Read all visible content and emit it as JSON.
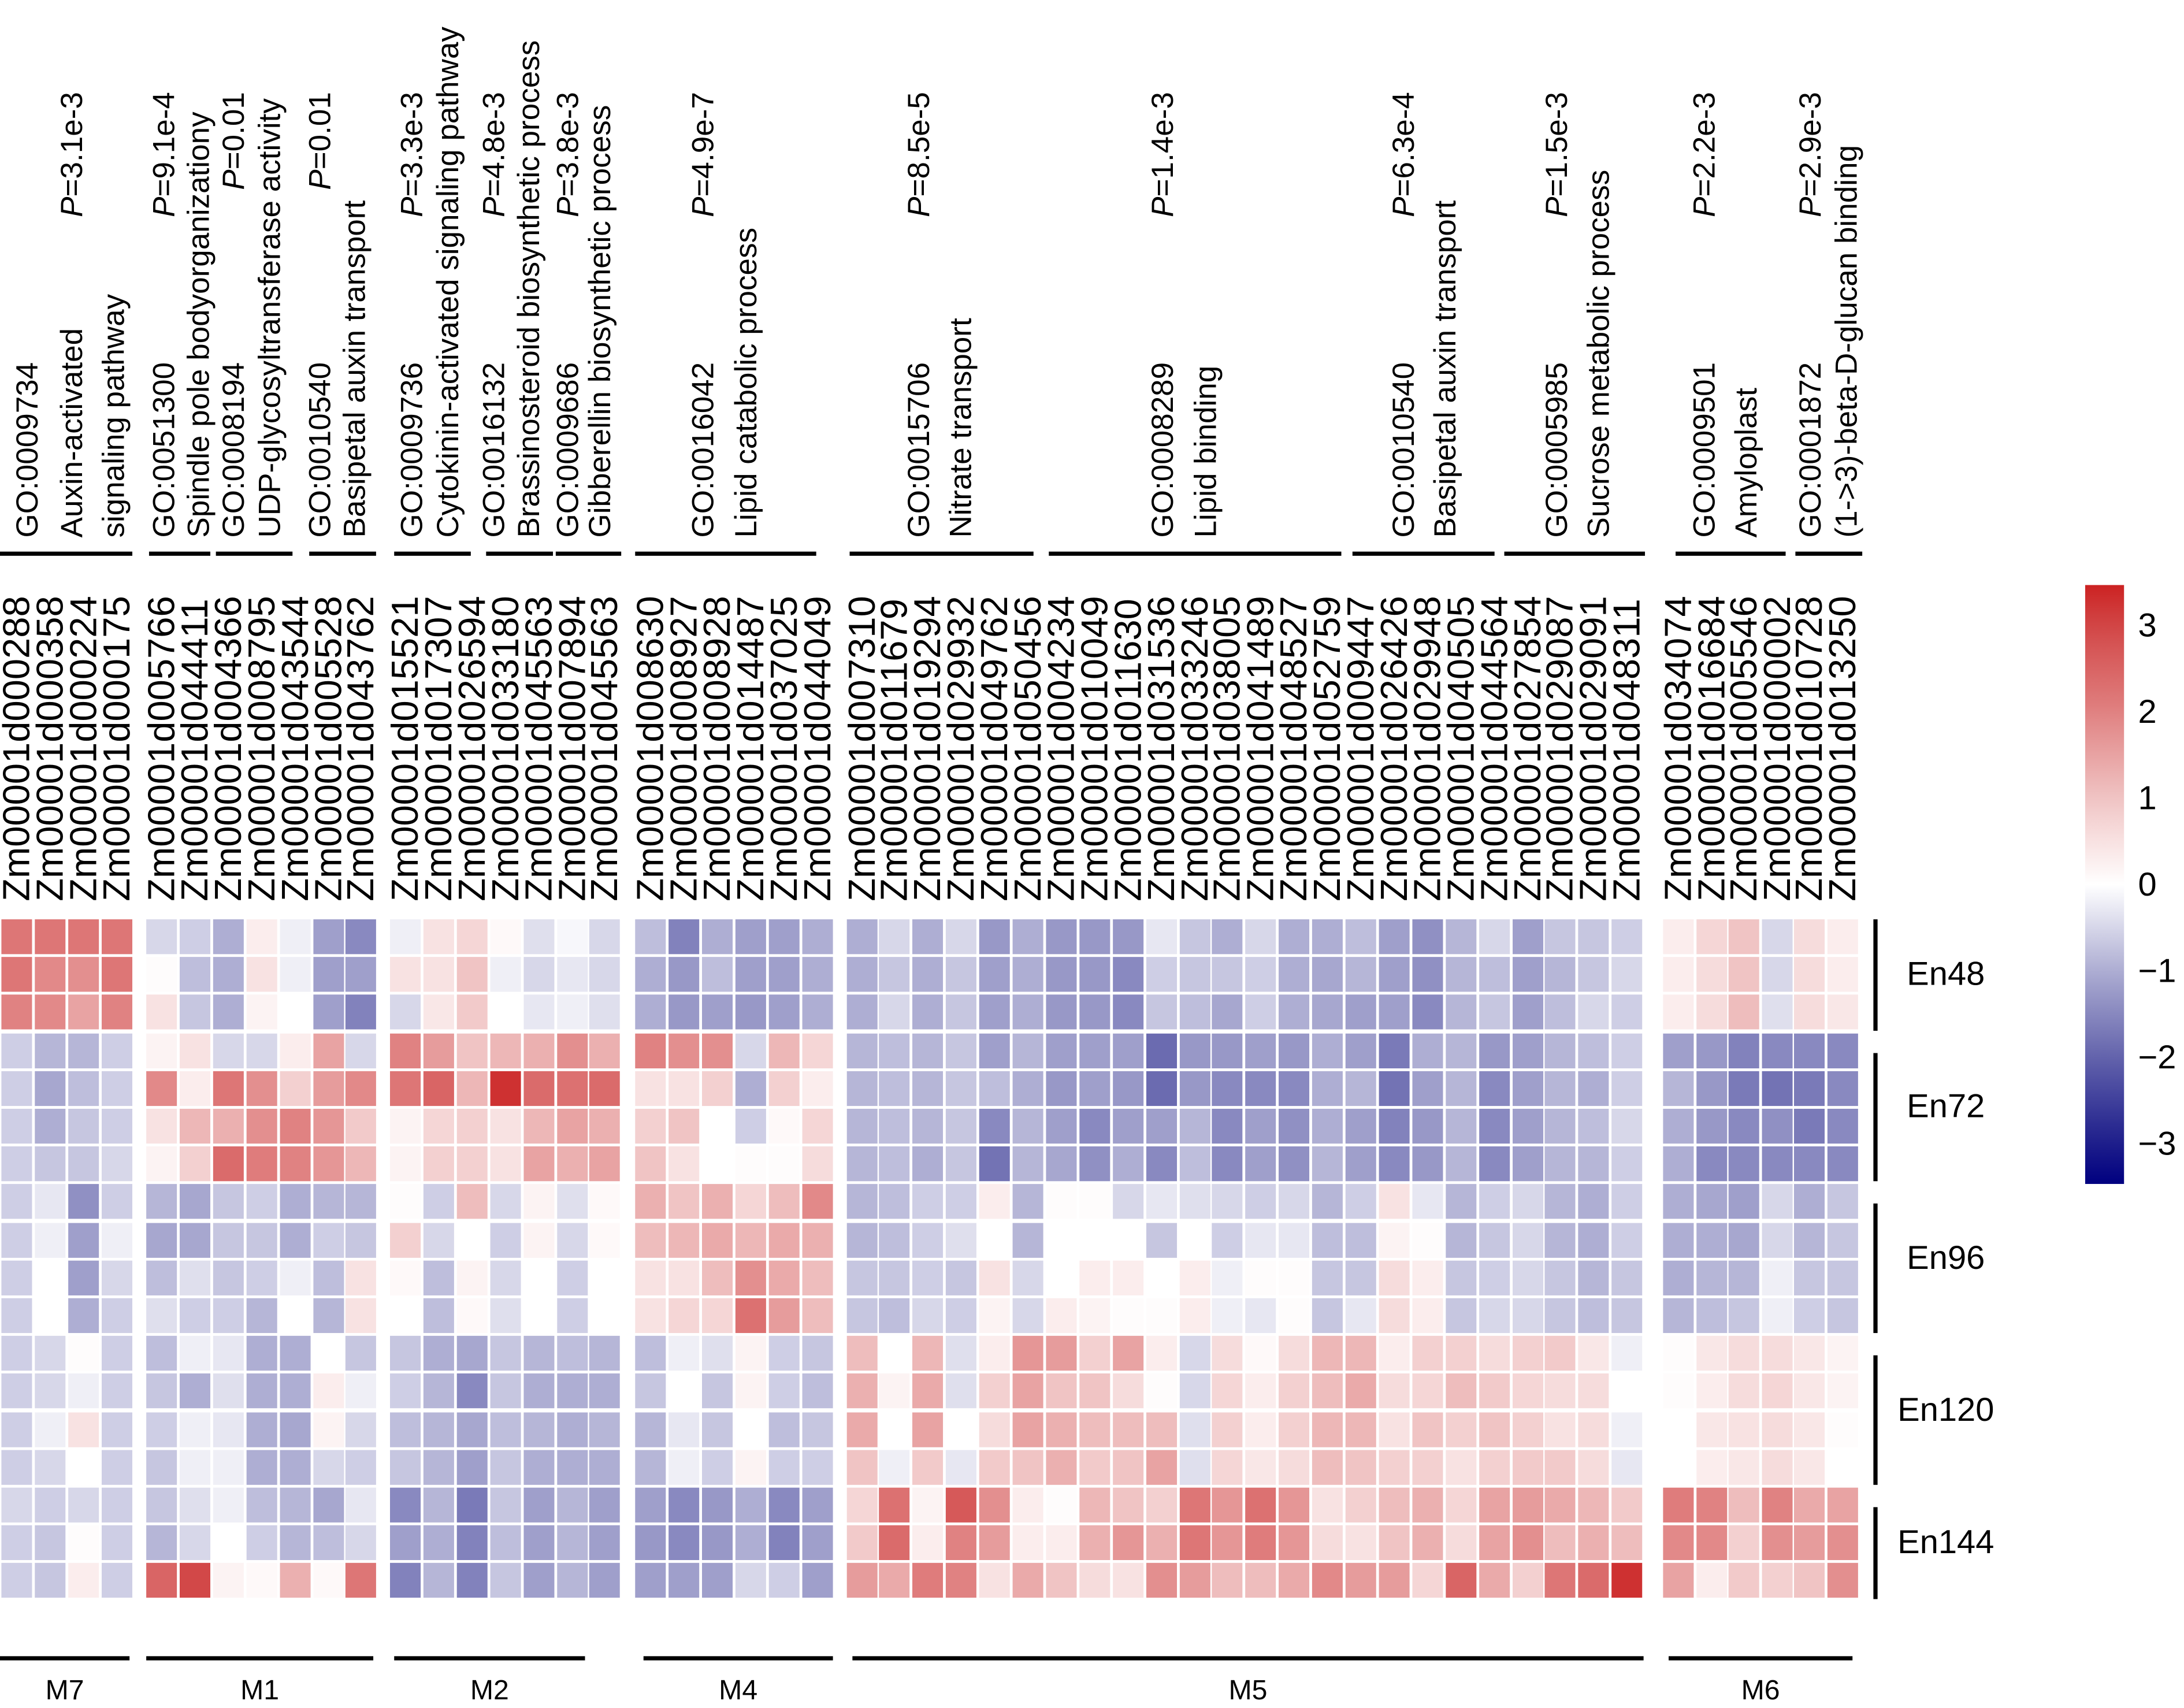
{
  "chart_data": {
    "type": "heatmap",
    "title": "",
    "colorbar": {
      "min": -3.5,
      "max": 3.5,
      "ticks": [
        "3",
        "2",
        "1",
        "0",
        "−1",
        "−2",
        "−3"
      ],
      "low_color": "#000080",
      "mid_color": "#ffffff",
      "high_color": "#cc2222"
    },
    "p_prefix": "P",
    "p_eq": "=",
    "go_annotations": [
      {
        "lines": [
          "GO:0009734",
          "Auxin-activated",
          "signaling pathway"
        ],
        "p": "3.1e-3"
      },
      {
        "lines": [
          "GO:0051300",
          "Spindle pole bodyorganizationy"
        ],
        "p": "9.1e-4"
      },
      {
        "lines": [
          "GO:0008194",
          "UDP-glycosyltransferase activity"
        ],
        "p": "0.01"
      },
      {
        "lines": [
          "GO:0010540",
          "Basipetal auxin transport"
        ],
        "p": "0.01"
      },
      {
        "lines": [
          "GO:0009736",
          "Cytokinin-activated signaling pathway"
        ],
        "p": "3.3e-3"
      },
      {
        "lines": [
          "GO:0016132",
          "Brassinosteroid biosynthetic process"
        ],
        "p": "4.8e-3"
      },
      {
        "lines": [
          "GO:0009686",
          "Gibberellin biosynthetic process"
        ],
        "p": "3.8e-3"
      },
      {
        "lines": [
          "GO:0016042",
          "Lipid catabolic process"
        ],
        "p": "4.9e-7"
      },
      {
        "lines": [
          "GO:0015706",
          "Nitrate transport"
        ],
        "p": "8.5e-5"
      },
      {
        "lines": [
          "GO:0008289",
          "Lipid binding"
        ],
        "p": "1.4e-3"
      },
      {
        "lines": [
          "GO:0010540",
          "Basipetal auxin transport"
        ],
        "p": "6.3e-4"
      },
      {
        "lines": [
          "GO:0005985",
          "Sucrose metabolic process"
        ],
        "p": "1.5e-3"
      },
      {
        "lines": [
          "GO:0009501",
          "Amyloplast"
        ],
        "p": "2.2e-3"
      },
      {
        "lines": [
          "GO:0001872",
          "(1->3)-beta-D-glucan binding"
        ],
        "p": "2.9e-3"
      }
    ],
    "modules": [
      {
        "name": "M7",
        "genes": [
          "Zm00001d000288",
          "Zm00001d000358",
          "Zm00001d000224",
          "Zm00001d000175"
        ]
      },
      {
        "name": "M1",
        "genes": [
          "Zm00001d005766",
          "Zm00001d044411",
          "Zm00001d004366",
          "Zm00001d008795",
          "Zm00001d043544",
          "Zm00001d005528",
          "Zm00001d043762"
        ]
      },
      {
        "name": "M2",
        "genes": [
          "Zm00001d015521",
          "Zm00001d017307",
          "Zm00001d026594",
          "Zm00001d033180",
          "Zm00001d045563",
          "Zm00001d007894",
          "Zm00001d045563"
        ]
      },
      {
        "name": "M4",
        "genes": [
          "Zm00001d008630",
          "Zm00001d008927",
          "Zm00001d008928",
          "Zm00001d014487",
          "Zm00001d037025",
          "Zm00001d044049"
        ]
      },
      {
        "name": "M5",
        "genes": [
          "Zm00001d007310",
          "Zm00001d011679",
          "Zm00001d019294",
          "Zm00001d029932",
          "Zm00001d049762",
          "Zm00001d050456",
          "Zm00001d004234",
          "Zm00001d010049",
          "Zm00001d011630",
          "Zm00001d031536",
          "Zm00001d033246",
          "Zm00001d038005",
          "Zm00001d041489",
          "Zm00001d048527",
          "Zm00001d052759",
          "Zm00001d009447",
          "Zm00001d026426",
          "Zm00001d029948",
          "Zm00001d040505",
          "Zm00001d044564",
          "Zm00001d027854",
          "Zm00001d029087",
          "Zm00001d029091",
          "Zm00001d048311"
        ]
      },
      {
        "name": "M6",
        "genes": [
          "Zm00001d034074",
          "Zm00001d016684",
          "Zm00001d005546",
          "Zm00001d000002",
          "Zm00001d010728",
          "Zm00001d013250"
        ]
      }
    ],
    "row_groups": [
      {
        "name": "En48",
        "rows": 3
      },
      {
        "name": "En72",
        "rows": 4
      },
      {
        "name": "En96",
        "rows": 4
      },
      {
        "name": "En120",
        "rows": 4
      },
      {
        "name": "En144",
        "rows": 3
      }
    ],
    "values": [
      [
        2.2,
        2.2,
        2.2,
        2.2,
        -0.5,
        -0.6,
        -1.0,
        0.3,
        -0.2,
        -1.2,
        -1.5,
        -0.2,
        0.5,
        0.7,
        0.1,
        -0.4,
        -0.1,
        -0.5,
        -0.8,
        -1.6,
        -1.0,
        -1.2,
        -1.2,
        -1.0,
        -1.0,
        -0.5,
        -1.0,
        -0.5,
        -1.3,
        -1.0,
        -1.3,
        -1.3,
        -1.3,
        -0.3,
        -0.7,
        -1.0,
        -0.5,
        -1.0,
        -1.0,
        -0.8,
        -1.2,
        -1.4,
        -0.9,
        -0.5,
        -1.2,
        -0.7,
        -0.7,
        -0.6,
        0.3,
        0.7,
        1.0,
        -0.5,
        0.6,
        0.3
      ],
      [
        2.2,
        1.9,
        1.8,
        2.2,
        0.05,
        -0.8,
        -1.0,
        0.5,
        -0.2,
        -1.2,
        -1.2,
        0.5,
        0.5,
        1.0,
        -0.2,
        -0.5,
        -0.3,
        -0.5,
        -1.0,
        -1.3,
        -0.8,
        -1.2,
        -1.2,
        -1.0,
        -1.0,
        -0.7,
        -1.0,
        -0.7,
        -1.2,
        -1.0,
        -1.3,
        -1.3,
        -1.5,
        -0.6,
        -0.7,
        -0.7,
        -0.6,
        -1.0,
        -1.1,
        -0.9,
        -1.2,
        -1.4,
        -0.9,
        -0.8,
        -1.2,
        -0.9,
        -0.7,
        -0.5,
        0.3,
        0.6,
        1.0,
        -0.5,
        0.6,
        0.3
      ],
      [
        2.0,
        1.9,
        1.5,
        2.0,
        0.5,
        -0.7,
        -1.0,
        0.2,
        0.0,
        -1.2,
        -1.6,
        -0.5,
        0.4,
        0.9,
        0.0,
        -0.3,
        -0.2,
        -0.4,
        -1.0,
        -1.3,
        -1.2,
        -1.3,
        -1.2,
        -1.0,
        -1.0,
        -0.5,
        -1.0,
        -0.7,
        -1.2,
        -1.0,
        -1.3,
        -1.3,
        -1.5,
        -0.7,
        -0.8,
        -1.1,
        -0.6,
        -1.0,
        -1.1,
        -1.2,
        -1.2,
        -1.5,
        -0.9,
        -0.7,
        -1.2,
        -0.8,
        -0.5,
        -0.6,
        0.3,
        0.6,
        1.1,
        -0.4,
        0.6,
        0.4
      ],
      [
        -0.6,
        -0.9,
        -0.9,
        -0.6,
        0.2,
        0.5,
        -0.5,
        -0.5,
        0.3,
        1.5,
        -0.5,
        2.0,
        1.6,
        1.0,
        1.2,
        1.3,
        1.8,
        1.3,
        2.0,
        1.8,
        1.8,
        -0.5,
        1.2,
        0.7,
        -0.9,
        -0.8,
        -0.9,
        -0.7,
        -1.2,
        -0.9,
        -1.2,
        -1.2,
        -1.2,
        -1.9,
        -1.3,
        -1.3,
        -1.2,
        -1.3,
        -1.0,
        -1.2,
        -1.7,
        -1.0,
        -0.9,
        -1.3,
        -1.2,
        -0.9,
        -0.8,
        -0.6,
        -1.2,
        -1.3,
        -1.6,
        -1.5,
        -1.5,
        -1.5
      ],
      [
        -0.6,
        -1.1,
        -0.8,
        -0.6,
        1.9,
        0.3,
        2.2,
        1.8,
        0.8,
        1.6,
        1.9,
        2.2,
        2.5,
        1.2,
        3.3,
        2.4,
        2.3,
        2.4,
        0.5,
        0.5,
        0.8,
        -1.0,
        0.8,
        0.3,
        -0.9,
        -0.8,
        -0.9,
        -0.7,
        -0.8,
        -1.0,
        -1.3,
        -1.2,
        -1.3,
        -1.9,
        -1.3,
        -1.5,
        -1.5,
        -1.5,
        -1.0,
        -0.9,
        -1.8,
        -1.2,
        -0.9,
        -1.5,
        -1.2,
        -0.9,
        -1.0,
        -0.6,
        -0.9,
        -1.3,
        -1.7,
        -1.8,
        -1.7,
        -1.5
      ],
      [
        -0.6,
        -1.0,
        -0.7,
        -0.6,
        0.5,
        1.2,
        1.3,
        1.8,
        2.0,
        1.7,
        0.9,
        0.2,
        0.7,
        0.8,
        0.5,
        1.2,
        1.5,
        1.3,
        0.8,
        1.0,
        0.0,
        -0.6,
        0.1,
        0.7,
        -0.9,
        -0.8,
        -0.9,
        -0.7,
        -1.5,
        -0.9,
        -1.2,
        -1.5,
        -1.2,
        -1.2,
        -0.9,
        -1.5,
        -1.2,
        -1.4,
        -1.0,
        -1.2,
        -1.6,
        -1.3,
        -0.9,
        -1.5,
        -1.2,
        -0.9,
        -0.8,
        -0.5,
        -1.0,
        -1.3,
        -1.5,
        -1.4,
        -1.7,
        -1.5
      ],
      [
        -0.6,
        -0.7,
        -0.7,
        -0.5,
        0.2,
        0.8,
        2.4,
        2.1,
        2.0,
        1.7,
        1.2,
        0.2,
        0.8,
        0.8,
        0.5,
        1.5,
        1.3,
        1.5,
        1.0,
        0.5,
        0.0,
        0.05,
        0.05,
        0.6,
        -0.9,
        -0.8,
        -1.0,
        -0.7,
        -1.8,
        -0.9,
        -1.1,
        -1.4,
        -1.0,
        -1.5,
        -0.8,
        -1.5,
        -1.2,
        -1.4,
        -0.9,
        -1.2,
        -1.5,
        -1.3,
        -0.9,
        -1.5,
        -1.2,
        -0.9,
        -0.9,
        -0.6,
        -1.0,
        -1.5,
        -1.5,
        -1.5,
        -1.5,
        -1.5
      ],
      [
        -0.6,
        -0.3,
        -1.4,
        -0.6,
        -0.9,
        -1.1,
        -0.7,
        -0.6,
        -1.0,
        -0.9,
        -0.9,
        0.05,
        -0.6,
        1.1,
        -0.5,
        0.2,
        -0.4,
        0.1,
        1.3,
        1.0,
        1.3,
        0.7,
        1.1,
        1.9,
        -0.9,
        -0.8,
        -0.6,
        -0.6,
        0.3,
        -0.9,
        0.05,
        0.05,
        -0.5,
        -0.3,
        -0.4,
        -0.5,
        -0.6,
        -0.5,
        -0.9,
        -0.6,
        0.5,
        -0.3,
        -0.9,
        -0.6,
        -0.5,
        -0.9,
        -1.0,
        -0.6,
        -1.0,
        -1.1,
        -1.2,
        -0.5,
        -1.0,
        -0.7
      ],
      [
        -0.6,
        -0.2,
        -1.2,
        -0.2,
        -1.1,
        -1.1,
        -0.7,
        -0.7,
        -1.0,
        -0.6,
        -0.7,
        0.8,
        -0.5,
        0.0,
        -0.6,
        0.2,
        -0.5,
        0.1,
        1.1,
        1.2,
        1.4,
        1.2,
        1.4,
        1.3,
        -0.9,
        -0.8,
        -0.6,
        -0.4,
        0.0,
        -0.9,
        0.0,
        0.0,
        0.0,
        -0.7,
        0.0,
        -0.6,
        -0.3,
        -0.3,
        -0.8,
        -0.8,
        0.2,
        0.05,
        -0.9,
        -0.7,
        -0.5,
        -0.9,
        -1.0,
        -0.6,
        -1.0,
        -1.0,
        -1.1,
        -0.5,
        -0.9,
        -0.7
      ],
      [
        -0.6,
        0.0,
        -1.2,
        -0.5,
        -0.8,
        -0.4,
        -0.7,
        -0.6,
        -0.2,
        -0.8,
        0.5,
        0.1,
        -0.8,
        0.2,
        -0.5,
        0.0,
        -0.6,
        0.0,
        0.5,
        0.5,
        1.1,
        1.8,
        1.4,
        1.1,
        -0.7,
        -0.7,
        -0.6,
        -0.7,
        0.5,
        -0.5,
        0.0,
        0.3,
        0.3,
        0.0,
        0.3,
        -0.2,
        0.05,
        0.05,
        -0.7,
        -0.7,
        0.6,
        0.3,
        -0.7,
        -0.6,
        -0.5,
        -0.7,
        -0.9,
        -0.7,
        -1.0,
        -0.9,
        -0.9,
        -0.2,
        -0.7,
        -0.7
      ],
      [
        -0.6,
        0.0,
        -1.0,
        -0.6,
        -0.4,
        -0.6,
        -0.6,
        -0.9,
        0.0,
        -0.9,
        0.5,
        0.0,
        -0.8,
        0.1,
        -0.4,
        0.0,
        -0.6,
        0.0,
        0.5,
        0.7,
        0.7,
        2.3,
        1.6,
        1.1,
        -0.7,
        -0.8,
        -0.5,
        -0.6,
        0.2,
        -0.5,
        0.3,
        0.2,
        0.05,
        0.05,
        0.3,
        -0.2,
        -0.3,
        0.05,
        -0.7,
        -0.3,
        0.6,
        0.3,
        -0.7,
        -0.5,
        -0.5,
        -0.7,
        -0.8,
        -0.7,
        -0.9,
        -0.8,
        -0.7,
        -0.2,
        -0.6,
        -0.7
      ],
      [
        -0.6,
        -0.5,
        0.05,
        -0.6,
        -0.8,
        -0.2,
        -0.3,
        -1.0,
        -1.0,
        0.0,
        -0.7,
        -0.7,
        -1.0,
        -1.1,
        -0.7,
        -0.9,
        -0.8,
        -0.9,
        -0.8,
        -0.2,
        -0.4,
        0.2,
        -0.6,
        -0.7,
        1.1,
        0.0,
        1.2,
        -0.4,
        0.3,
        1.7,
        1.6,
        0.8,
        1.5,
        0.3,
        -0.5,
        0.6,
        0.1,
        0.6,
        1.2,
        1.2,
        0.3,
        0.8,
        0.8,
        0.6,
        0.8,
        0.9,
        0.4,
        -0.2,
        0.05,
        0.4,
        0.6,
        0.6,
        0.4,
        0.2
      ],
      [
        -0.6,
        -0.5,
        -0.2,
        -0.6,
        -0.7,
        -1.0,
        -0.4,
        -1.0,
        -1.0,
        0.3,
        -0.2,
        -0.6,
        -0.9,
        -1.5,
        -0.7,
        -1.0,
        -1.0,
        -1.0,
        -0.7,
        0.0,
        -0.7,
        0.2,
        -0.6,
        -0.8,
        1.3,
        0.2,
        1.4,
        -0.4,
        0.8,
        1.5,
        1.0,
        1.0,
        0.6,
        0.05,
        -0.5,
        0.7,
        0.3,
        0.8,
        1.1,
        1.4,
        0.6,
        0.7,
        1.1,
        0.9,
        0.7,
        0.6,
        0.6,
        0.0,
        0.05,
        0.3,
        0.6,
        0.7,
        0.4,
        0.2
      ],
      [
        -0.6,
        -0.2,
        0.5,
        -0.6,
        -0.6,
        -0.2,
        -0.3,
        -1.0,
        -1.1,
        0.2,
        -0.5,
        -0.8,
        -0.9,
        -1.1,
        -0.8,
        -0.9,
        -1.0,
        -0.9,
        -0.9,
        -0.3,
        -0.7,
        0.0,
        -0.8,
        -0.7,
        1.4,
        0.0,
        1.5,
        0.0,
        0.6,
        1.5,
        1.3,
        1.1,
        1.1,
        1.1,
        -0.4,
        0.8,
        0.3,
        0.8,
        1.2,
        1.2,
        0.5,
        1.0,
        0.8,
        1.0,
        0.8,
        0.5,
        0.6,
        -0.2,
        0.0,
        0.4,
        0.5,
        0.6,
        0.4,
        0.05
      ],
      [
        -0.6,
        -0.5,
        0.0,
        -0.6,
        -0.7,
        -0.2,
        -0.2,
        -1.0,
        -1.0,
        -0.5,
        -0.6,
        -0.7,
        -0.9,
        -1.2,
        -0.7,
        -1.0,
        -1.0,
        -1.0,
        -0.9,
        -0.2,
        -0.6,
        0.2,
        -0.6,
        -0.6,
        1.0,
        -0.2,
        0.9,
        -0.3,
        0.9,
        1.0,
        1.3,
        0.9,
        1.0,
        1.5,
        -0.4,
        0.7,
        0.4,
        0.6,
        1.1,
        1.0,
        0.8,
        0.8,
        0.5,
        0.8,
        0.9,
        0.9,
        0.6,
        -0.3,
        0.0,
        0.3,
        0.4,
        0.6,
        0.4,
        0.0
      ],
      [
        -0.5,
        -0.6,
        -0.5,
        -0.6,
        -0.7,
        -0.4,
        -0.2,
        -0.8,
        -0.9,
        -1.1,
        -0.3,
        -1.5,
        -0.9,
        -1.7,
        -0.7,
        -1.2,
        -0.9,
        -1.2,
        -1.2,
        -1.5,
        -1.3,
        -1.0,
        -1.5,
        -1.2,
        0.7,
        2.3,
        0.2,
        2.7,
        1.8,
        0.3,
        0.05,
        1.2,
        1.0,
        0.8,
        2.2,
        1.7,
        2.3,
        1.7,
        0.5,
        0.8,
        1.1,
        1.3,
        0.7,
        1.5,
        1.6,
        1.4,
        1.2,
        0.9,
        2.1,
        2.0,
        1.1,
        2.0,
        1.4,
        1.5
      ],
      [
        -0.6,
        -0.7,
        0.05,
        -0.6,
        -0.9,
        -0.5,
        0.0,
        -0.6,
        -0.9,
        -0.8,
        -0.5,
        -1.2,
        -1.0,
        -1.6,
        -0.8,
        -1.2,
        -0.9,
        -1.2,
        -1.3,
        -1.5,
        -1.3,
        -1.0,
        -1.6,
        -1.2,
        0.9,
        2.4,
        0.3,
        2.0,
        1.6,
        0.3,
        0.3,
        1.3,
        1.7,
        1.3,
        2.2,
        1.7,
        2.1,
        1.7,
        0.6,
        0.5,
        1.0,
        1.3,
        0.6,
        1.5,
        1.8,
        1.1,
        1.3,
        1.1,
        1.9,
        1.9,
        0.8,
        1.8,
        1.6,
        1.8
      ],
      [
        -0.6,
        -0.7,
        0.3,
        -0.6,
        2.5,
        3.0,
        0.2,
        0.1,
        1.3,
        0.1,
        2.2,
        -1.6,
        -0.9,
        -1.6,
        -0.7,
        -1.2,
        -0.9,
        -1.2,
        -1.2,
        -1.2,
        -1.2,
        -0.5,
        -0.6,
        -1.2,
        1.6,
        1.4,
        2.1,
        2.0,
        0.5,
        1.4,
        1.0,
        0.6,
        0.5,
        1.8,
        1.6,
        1.1,
        1.1,
        1.4,
        1.9,
        1.6,
        1.6,
        0.7,
        2.5,
        1.4,
        0.8,
        2.2,
        2.4,
        3.3,
        1.5,
        0.3,
        0.9,
        0.8,
        1.0,
        1.8
      ]
    ]
  }
}
